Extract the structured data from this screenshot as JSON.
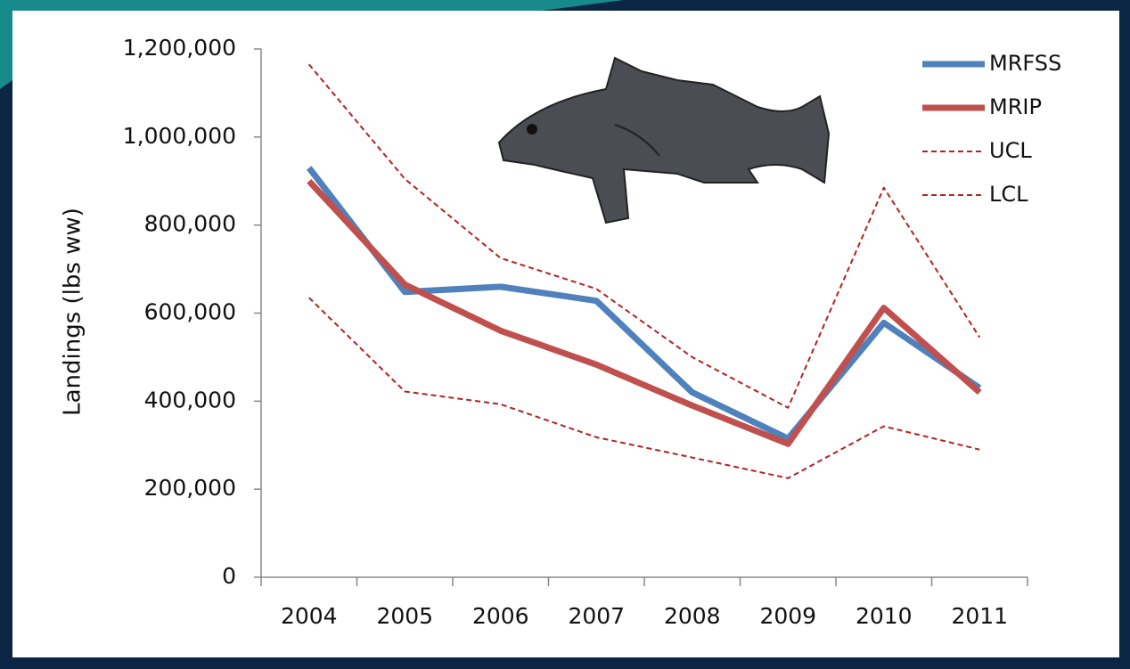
{
  "chart_data": {
    "type": "line",
    "y_label": "Landings (lbs ww)",
    "categories": [
      "2004",
      "2005",
      "2006",
      "2007",
      "2008",
      "2009",
      "2010",
      "2011"
    ],
    "series": [
      {
        "name": "MRFSS",
        "color": "#4f81bd",
        "line_style": "solid",
        "values": [
          930000,
          648000,
          660000,
          628000,
          420000,
          315000,
          578000,
          430000
        ]
      },
      {
        "name": "MRIP",
        "color": "#c0504d",
        "line_style": "solid",
        "values": [
          900000,
          665000,
          560000,
          483000,
          390000,
          303000,
          612000,
          420000
        ]
      },
      {
        "name": "UCL",
        "color": "#b22222",
        "line_style": "dashed",
        "values": [
          1165000,
          905000,
          725000,
          655000,
          500000,
          385000,
          885000,
          545000
        ]
      },
      {
        "name": "LCL",
        "color": "#b22222",
        "line_style": "dashed",
        "values": [
          635000,
          422000,
          393000,
          318000,
          272000,
          225000,
          343000,
          290000
        ]
      }
    ],
    "ylim": [
      0,
      1200000
    ],
    "yticks": [
      0,
      {
        "value": 200000,
        "label": "200,000"
      },
      {
        "value": 400000,
        "label": "400,000"
      },
      {
        "value": 600000,
        "label": "600,000"
      },
      {
        "value": 800000,
        "label": "800,000"
      },
      {
        "value": 1000000,
        "label": "1,000,000"
      },
      {
        "value": 1200000,
        "label": "1,200,000"
      }
    ],
    "grid": false,
    "legend": "top-right"
  }
}
